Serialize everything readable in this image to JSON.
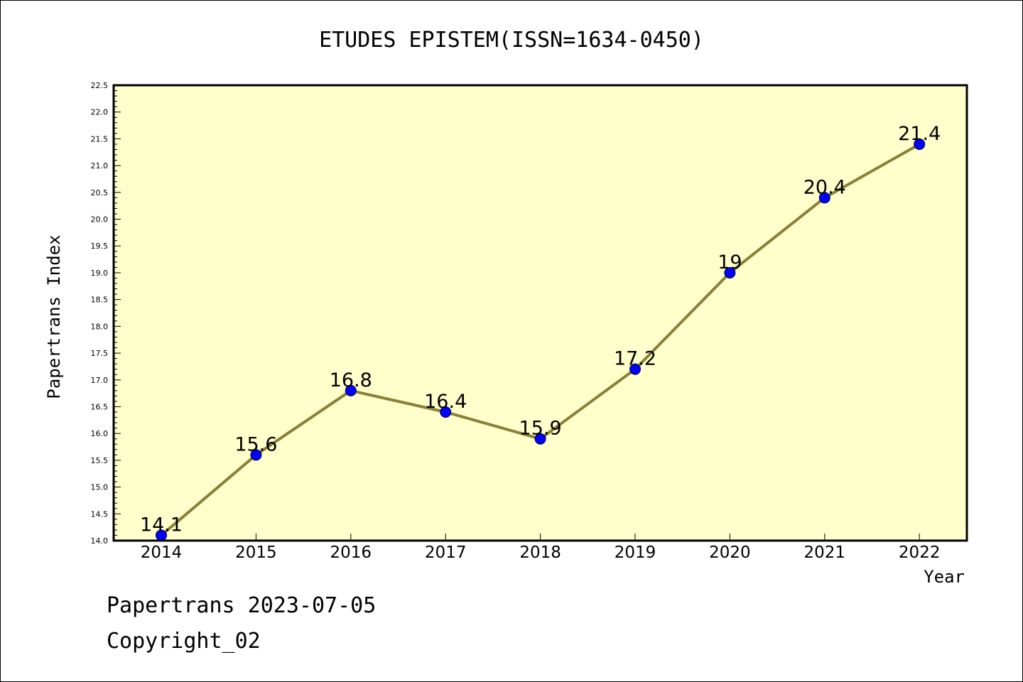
{
  "chart_data": {
    "type": "line",
    "title": "ETUDES EPISTEM(ISSN=1634-0450)",
    "xlabel": "Year",
    "ylabel": "Papertrans Index",
    "x": [
      "2014",
      "2015",
      "2016",
      "2017",
      "2018",
      "2019",
      "2020",
      "2021",
      "2022"
    ],
    "values": [
      14.1,
      15.6,
      16.8,
      16.4,
      15.9,
      17.2,
      19,
      20.4,
      21.4
    ],
    "data_labels": [
      "14.1",
      "15.6",
      "16.8",
      "16.4",
      "15.9",
      "17.2",
      "19",
      "20.4",
      "21.4"
    ],
    "ylim": [
      14.0,
      22.5
    ],
    "yticks": [
      "14.0",
      "14.5",
      "15.0",
      "15.5",
      "16.0",
      "16.5",
      "17.0",
      "17.5",
      "18.0",
      "18.5",
      "19.0",
      "19.5",
      "20.0",
      "20.5",
      "21.0",
      "21.5",
      "22.0",
      "22.5"
    ],
    "grid": false,
    "colors": {
      "plot_background": "#ffffcc",
      "line": "#8b8035",
      "marker": "#0000ff"
    }
  },
  "footer": {
    "line1": "Papertrans 2023-07-05",
    "line2": "Copyright_02"
  }
}
